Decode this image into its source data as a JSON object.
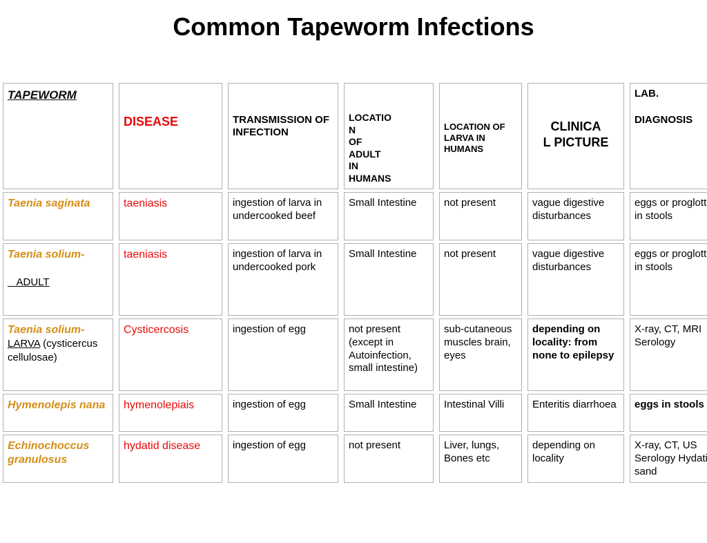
{
  "title": "Common Tapeworm Infections",
  "headers": {
    "tapeworm": "TAPEWORM",
    "disease": "DISEASE",
    "transmission_b": "TRANSMISSION",
    "transmission_r": " OF INFECTION",
    "loc_adult": "LOCATION OF ADULT IN HUMANS",
    "loc_larva": "LOCATION OF LARVA IN HUMANS",
    "clinical": "CLINICAL PICTURE",
    "lab_l1": "LAB.",
    "lab_l2": "DIAGNOSIS"
  },
  "rows": [
    {
      "tapeworm_main": "Taenia saginata",
      "tapeworm_sub": "",
      "disease": "taeniasis",
      "transmission": "ingestion of larva in undercooked beef",
      "loc_adult": "Small Intestine",
      "loc_larva": "not present",
      "clinical": "vague digestive disturbances",
      "clinical_bold": false,
      "lab": "eggs or proglottids in stools",
      "lab_bold": false,
      "height": "row-tall"
    },
    {
      "tapeworm_main": "Taenia solium-",
      "tapeworm_sub": "ADULT",
      "tapeworm_sub_underline": true,
      "disease": "taeniasis",
      "transmission": "ingestion of larva in undercooked pork",
      "loc_adult": "Small Intestine",
      "loc_larva": "not present",
      "clinical": "vague digestive disturbances",
      "clinical_bold": false,
      "lab": "eggs or proglottids in stools",
      "lab_bold": false,
      "height": "row-big"
    },
    {
      "tapeworm_main": "Taenia solium-",
      "tapeworm_sub": "LARVA (cysticercus cellulosae)",
      "tapeworm_sub_underline": false,
      "disease": "Cysticercosis",
      "transmission": "ingestion of egg",
      "loc_adult": "not present (except in Autoinfection, small intestine)",
      "loc_larva": "sub-cutaneous muscles brain, eyes",
      "clinical": "depending on locality: from none to epilepsy",
      "clinical_bold": true,
      "lab": "X-ray, CT, MRI Serology",
      "lab_bold": false,
      "height": "row-big"
    },
    {
      "tapeworm_main": "Hymenolepis nana",
      "tapeworm_sub": "",
      "disease": "hymenolepiais",
      "transmission": "ingestion of egg",
      "loc_adult": "Small Intestine",
      "loc_larva": "Intestinal Villi",
      "clinical": "Enteritis diarrhoea",
      "clinical_bold": false,
      "lab": "eggs in stools",
      "lab_bold": true,
      "height": "row-med"
    },
    {
      "tapeworm_main": "Echinochoccus granulosus",
      "tapeworm_sub": "",
      "disease": "hydatid disease",
      "transmission": "ingestion of egg",
      "loc_adult": "not present",
      "loc_larva": "Liver, lungs, Bones etc",
      "clinical": "depending on locality",
      "clinical_bold": false,
      "lab": "X-ray, CT, US Serology Hydatid sand",
      "lab_bold": false,
      "height": "row-med"
    }
  ]
}
